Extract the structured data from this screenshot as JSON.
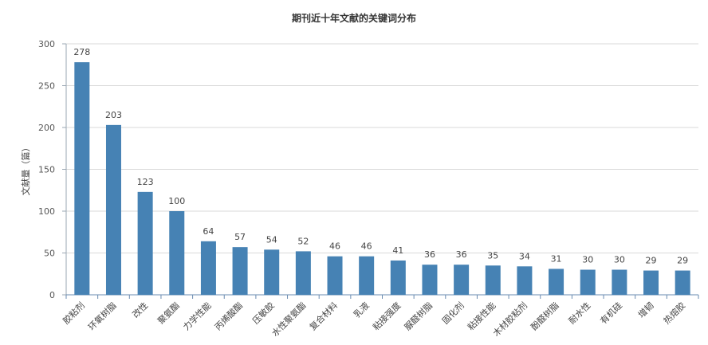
{
  "chart_data": {
    "type": "bar",
    "title": "期刊近十年文献的关键词分布",
    "xlabel": "",
    "ylabel": "文献量（篇）",
    "ylim": [
      0,
      300
    ],
    "yticks": [
      0,
      50,
      100,
      150,
      200,
      250,
      300
    ],
    "grid": true,
    "bar_color": "#4682b4",
    "categories": [
      "胶粘剂",
      "环氧树脂",
      "改性",
      "聚氨酯",
      "力学性能",
      "丙烯酸酯",
      "压敏胶",
      "水性聚氨酯",
      "复合材料",
      "乳液",
      "粘接强度",
      "脲醛树脂",
      "固化剂",
      "粘接性能",
      "木材胶粘剂",
      "酚醛树脂",
      "耐水性",
      "有机硅",
      "增韧",
      "热熔胶"
    ],
    "values": [
      278,
      203,
      123,
      100,
      64,
      57,
      54,
      52,
      46,
      46,
      41,
      36,
      36,
      35,
      34,
      31,
      30,
      30,
      29,
      29
    ]
  }
}
